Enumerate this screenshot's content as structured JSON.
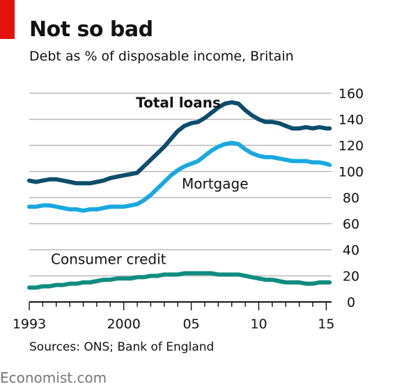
{
  "header": {
    "title": "Not so bad",
    "subtitle": "Debt as % of disposable income, Britain"
  },
  "footer": {
    "source": "Sources: ONS; Bank of England",
    "brand": "Economist.com"
  },
  "colors": {
    "brand_red": "#e3120b",
    "total_loans": "#0d4d6b",
    "mortgage": "#1aa8e0",
    "consumer_credit": "#0f8c80",
    "gridline": "#b9b9b9"
  },
  "chart_data": {
    "type": "line",
    "title": "Not so bad",
    "subtitle": "Debt as % of disposable income, Britain",
    "xlabel": "",
    "ylabel": "",
    "xlim": [
      1993,
      2015.6
    ],
    "ylim": [
      0,
      160
    ],
    "y_axis_side": "right",
    "yticks": [
      0,
      20,
      40,
      60,
      80,
      100,
      120,
      140,
      160
    ],
    "xticks": [
      {
        "value": 1993,
        "label": "1993"
      },
      {
        "value": 2000,
        "label": "2000"
      },
      {
        "value": 2005,
        "label": "05"
      },
      {
        "value": 2010,
        "label": "10"
      },
      {
        "value": 2015,
        "label": "15"
      }
    ],
    "grid": true,
    "legend": "inline labels",
    "series": [
      {
        "name": "Total loans",
        "color": "#0d4d6b",
        "x": [
          1993.0,
          1993.5,
          1994.0,
          1994.5,
          1995.0,
          1995.5,
          1996.0,
          1996.5,
          1997.0,
          1997.5,
          1998.0,
          1998.5,
          1999.0,
          1999.5,
          2000.0,
          2000.5,
          2001.0,
          2001.5,
          2002.0,
          2002.5,
          2003.0,
          2003.5,
          2004.0,
          2004.5,
          2005.0,
          2005.5,
          2006.0,
          2006.5,
          2007.0,
          2007.5,
          2008.0,
          2008.5,
          2009.0,
          2009.5,
          2010.0,
          2010.5,
          2011.0,
          2011.5,
          2012.0,
          2012.5,
          2013.0,
          2013.5,
          2014.0,
          2014.5,
          2015.0,
          2015.25
        ],
        "values": [
          93,
          92,
          93,
          94,
          94,
          93,
          92,
          91,
          91,
          91,
          92,
          93,
          95,
          96,
          97,
          98,
          99,
          104,
          109,
          114,
          119,
          125,
          131,
          135,
          137,
          138,
          141,
          145,
          149,
          152,
          153,
          152,
          147,
          143,
          140,
          138,
          138,
          137,
          135,
          133,
          133,
          134,
          133,
          134,
          133,
          133
        ]
      },
      {
        "name": "Mortgage",
        "color": "#1aa8e0",
        "x": [
          1993.0,
          1993.5,
          1994.0,
          1994.5,
          1995.0,
          1995.5,
          1996.0,
          1996.5,
          1997.0,
          1997.5,
          1998.0,
          1998.5,
          1999.0,
          1999.5,
          2000.0,
          2000.5,
          2001.0,
          2001.5,
          2002.0,
          2002.5,
          2003.0,
          2003.5,
          2004.0,
          2004.5,
          2005.0,
          2005.5,
          2006.0,
          2006.5,
          2007.0,
          2007.5,
          2008.0,
          2008.5,
          2009.0,
          2009.5,
          2010.0,
          2010.5,
          2011.0,
          2011.5,
          2012.0,
          2012.5,
          2013.0,
          2013.5,
          2014.0,
          2014.5,
          2015.0,
          2015.25
        ],
        "values": [
          73,
          73,
          74,
          74,
          73,
          72,
          71,
          71,
          70,
          71,
          71,
          72,
          73,
          73,
          73,
          74,
          75,
          78,
          82,
          87,
          92,
          97,
          101,
          104,
          106,
          108,
          112,
          116,
          119,
          121,
          122,
          121,
          117,
          114,
          112,
          111,
          111,
          110,
          109,
          108,
          108,
          108,
          107,
          107,
          106,
          105
        ]
      },
      {
        "name": "Consumer credit",
        "color": "#0f8c80",
        "x": [
          1993.0,
          1993.5,
          1994.0,
          1994.5,
          1995.0,
          1995.5,
          1996.0,
          1996.5,
          1997.0,
          1997.5,
          1998.0,
          1998.5,
          1999.0,
          1999.5,
          2000.0,
          2000.5,
          2001.0,
          2001.5,
          2002.0,
          2002.5,
          2003.0,
          2003.5,
          2004.0,
          2004.5,
          2005.0,
          2005.5,
          2006.0,
          2006.5,
          2007.0,
          2007.5,
          2008.0,
          2008.5,
          2009.0,
          2009.5,
          2010.0,
          2010.5,
          2011.0,
          2011.5,
          2012.0,
          2012.5,
          2013.0,
          2013.5,
          2014.0,
          2014.5,
          2015.0,
          2015.25
        ],
        "values": [
          11,
          11,
          12,
          12,
          13,
          13,
          14,
          14,
          15,
          15,
          16,
          17,
          17,
          18,
          18,
          18,
          19,
          19,
          20,
          20,
          21,
          21,
          21,
          22,
          22,
          22,
          22,
          22,
          21,
          21,
          21,
          21,
          20,
          19,
          18,
          17,
          17,
          16,
          15,
          15,
          15,
          14,
          14,
          15,
          15,
          15
        ]
      }
    ],
    "series_labels": [
      {
        "series": "Total loans",
        "text": "Total loans",
        "x": 2000.9,
        "y": 149,
        "bold": true
      },
      {
        "series": "Mortgage",
        "text": "Mortgage",
        "x": 2004.3,
        "y": 87,
        "bold": false
      },
      {
        "series": "Consumer credit",
        "text": "Consumer credit",
        "x": 1994.6,
        "y": 29,
        "bold": false
      }
    ]
  }
}
